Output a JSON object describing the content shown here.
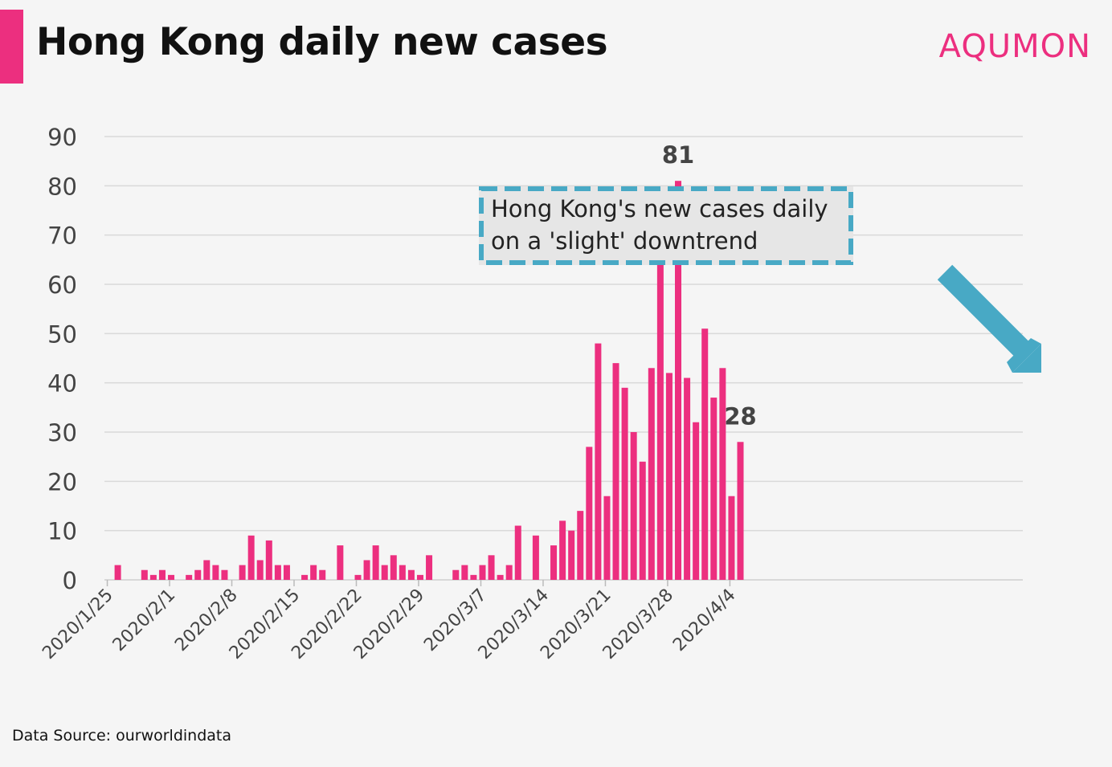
{
  "header": {
    "title": "Hong Kong daily new cases",
    "brand": "AQUMON",
    "accent_color": "#ec2f7f"
  },
  "footer": {
    "source": "Data Source: ourworldindata"
  },
  "annotation": {
    "line1": "Hong Kong's new cases daily",
    "line2": "on a 'slight' downtrend",
    "border_color": "#48a9c5",
    "arrow": "down-right-arrow-icon"
  },
  "chart_data": {
    "type": "bar",
    "title": "Hong Kong daily new cases",
    "xlabel": "",
    "ylabel": "",
    "ylim": [
      0,
      90
    ],
    "yticks": [
      0,
      10,
      20,
      30,
      40,
      50,
      60,
      70,
      80,
      90
    ],
    "grid": true,
    "bar_color": "#ec2f7f",
    "start_date": "2020/1/25",
    "xtick_labels": [
      "2020/1/25",
      "2020/2/1",
      "2020/2/8",
      "2020/2/15",
      "2020/2/22",
      "2020/2/29",
      "2020/3/7",
      "2020/3/14",
      "2020/3/21",
      "2020/3/28",
      "2020/4/4"
    ],
    "values": [
      0,
      3,
      0,
      0,
      2,
      1,
      2,
      1,
      0,
      1,
      2,
      4,
      3,
      2,
      0,
      3,
      9,
      4,
      8,
      3,
      3,
      0,
      1,
      3,
      2,
      0,
      7,
      0,
      1,
      4,
      7,
      3,
      5,
      3,
      2,
      1,
      5,
      0,
      0,
      2,
      3,
      1,
      3,
      5,
      1,
      3,
      11,
      0,
      9,
      0,
      7,
      12,
      10,
      14,
      27,
      48,
      17,
      44,
      39,
      30,
      24,
      43,
      65,
      42,
      81,
      41,
      32,
      51,
      37,
      43,
      17,
      28
    ],
    "data_labels": [
      {
        "index": 64,
        "text": "81"
      },
      {
        "index": 71,
        "text": "28"
      }
    ]
  }
}
